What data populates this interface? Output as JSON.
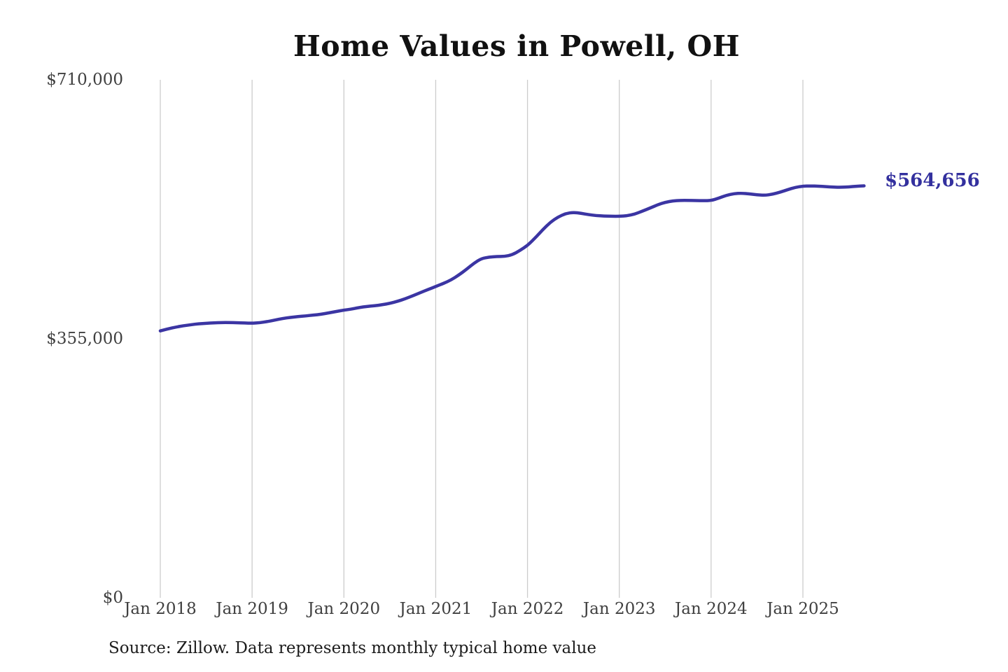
{
  "chart": {
    "title": "Home Values in Powell, OH",
    "end_label": "$564,656",
    "source_note": "Source: Zillow. Data represents monthly typical home value",
    "colors": {
      "line": "#3b35a3",
      "end_label": "#33309e",
      "grid": "#cccccc",
      "tick_text": "#404040",
      "background": "#ffffff"
    }
  },
  "chart_data": {
    "type": "line",
    "title": "Home Values in Powell, OH",
    "source_note": "Source: Zillow. Data represents monthly typical home value",
    "x_tick_labels": [
      "Jan 2018",
      "Jan 2019",
      "Jan 2020",
      "Jan 2021",
      "Jan 2022",
      "Jan 2023",
      "Jan 2024",
      "Jan 2025"
    ],
    "y_tick_labels": [
      "$710,000",
      "$355,000",
      "$0"
    ],
    "y_ticks": [
      710000,
      355000,
      0
    ],
    "ylim": [
      0,
      710000
    ],
    "x_start": "2018-01",
    "x_end": "2025-09",
    "frequency": "monthly",
    "grid": "vertical-only",
    "legend": "none",
    "final_value": 564656,
    "final_value_label": "$564,656",
    "series": [
      {
        "name": "Typical home value",
        "color": "#3b35a3",
        "values": [
          365800,
          368500,
          371000,
          372800,
          374300,
          375600,
          376300,
          376900,
          377300,
          377300,
          377000,
          376600,
          376300,
          377000,
          378600,
          380700,
          382800,
          384300,
          385400,
          386400,
          387500,
          388600,
          390500,
          392500,
          394300,
          395800,
          397900,
          399400,
          400400,
          401600,
          403600,
          406300,
          409800,
          413900,
          418300,
          422500,
          426700,
          430800,
          435600,
          442300,
          450000,
          458600,
          465100,
          467000,
          467700,
          467900,
          470100,
          475900,
          482900,
          493200,
          504700,
          514800,
          522000,
          526700,
          528400,
          527000,
          525100,
          523900,
          523200,
          522900,
          522900,
          523600,
          525800,
          529900,
          534100,
          538600,
          542100,
          544000,
          544700,
          544700,
          544500,
          544300,
          544500,
          547800,
          551700,
          553900,
          554600,
          553600,
          552400,
          551700,
          553000,
          555900,
          559400,
          562600,
          564200,
          564500,
          564200,
          563500,
          562900,
          562600,
          563200,
          564200,
          564656
        ]
      }
    ]
  }
}
